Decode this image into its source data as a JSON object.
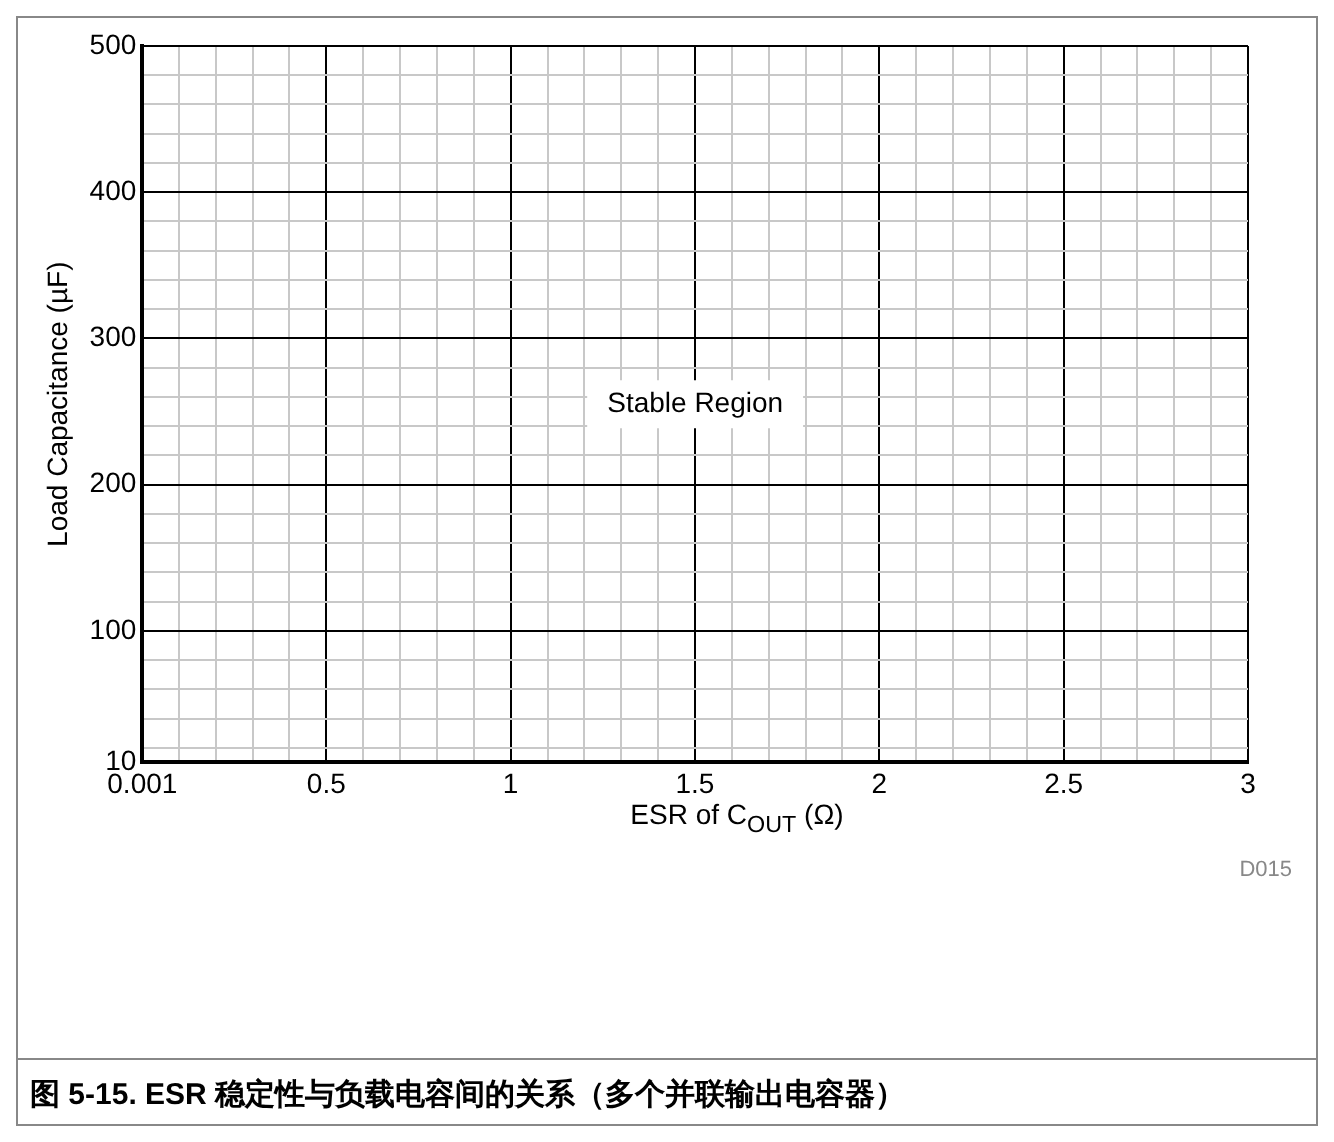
{
  "chart_data": {
    "type": "area",
    "title": "图 5-15. ESR 稳定性与负载电容间的关系（多个并联输出电容器）",
    "xlabel": "ESR of C$_{OUT}$ (Ω)",
    "ylabel": "Load Capacitance (µF)",
    "xlim": [
      0.001,
      3
    ],
    "xticks": [
      0.001,
      {
        "value": 0.1,
        "label": null
      },
      {
        "value": 0.2,
        "label": null
      },
      {
        "value": 0.3,
        "label": null
      },
      {
        "value": 0.4,
        "label": null
      },
      0.5,
      {
        "value": 0.6,
        "label": null
      },
      {
        "value": 0.7,
        "label": null
      },
      {
        "value": 0.8,
        "label": null
      },
      {
        "value": 0.9,
        "label": null
      },
      1,
      {
        "value": 1.1,
        "label": null
      },
      {
        "value": 1.2,
        "label": null
      },
      {
        "value": 1.3,
        "label": null
      },
      {
        "value": 1.4,
        "label": null
      },
      1.5,
      {
        "value": 1.6,
        "label": null
      },
      {
        "value": 1.7,
        "label": null
      },
      {
        "value": 1.8,
        "label": null
      },
      {
        "value": 1.9,
        "label": null
      },
      2,
      {
        "value": 2.1,
        "label": null
      },
      {
        "value": 2.2,
        "label": null
      },
      {
        "value": 2.3,
        "label": null
      },
      {
        "value": 2.4,
        "label": null
      },
      2.5,
      {
        "value": 2.6,
        "label": null
      },
      {
        "value": 2.7,
        "label": null
      },
      {
        "value": 2.8,
        "label": null
      },
      {
        "value": 2.9,
        "label": null
      },
      3
    ],
    "ylim": [
      10,
      500
    ],
    "yticks": [
      10,
      {
        "value": 20,
        "label": null
      },
      {
        "value": 40,
        "label": null
      },
      {
        "value": 60,
        "label": null
      },
      {
        "value": 80,
        "label": null
      },
      100,
      {
        "value": 120,
        "label": null
      },
      {
        "value": 140,
        "label": null
      },
      {
        "value": 160,
        "label": null
      },
      {
        "value": 180,
        "label": null
      },
      200,
      {
        "value": 220,
        "label": null
      },
      {
        "value": 240,
        "label": null
      },
      {
        "value": 260,
        "label": null
      },
      {
        "value": 280,
        "label": null
      },
      300,
      {
        "value": 320,
        "label": null
      },
      {
        "value": 340,
        "label": null
      },
      {
        "value": 360,
        "label": null
      },
      {
        "value": 380,
        "label": null
      },
      400,
      {
        "value": 420,
        "label": null
      },
      {
        "value": 440,
        "label": null
      },
      {
        "value": 460,
        "label": null
      },
      {
        "value": 480,
        "label": null
      },
      500
    ],
    "grid": true,
    "bands": [
      {
        "axis": "y",
        "from": 10,
        "to": 500,
        "label": "Stable Region",
        "color": "#ffffff"
      }
    ],
    "annotations": [
      "D015"
    ]
  }
}
